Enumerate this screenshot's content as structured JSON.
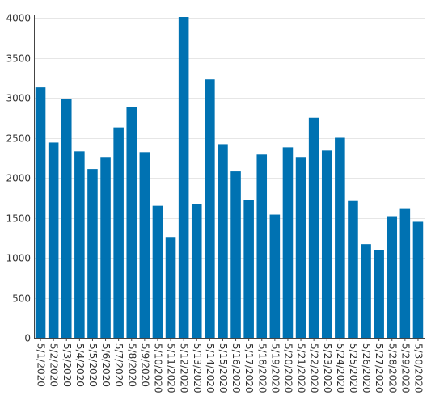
{
  "chart_data": {
    "type": "bar",
    "title": "",
    "xlabel": "",
    "ylabel": "",
    "ylim": [
      0,
      4000
    ],
    "y_ticks": [
      0,
      500,
      1000,
      1500,
      2000,
      2500,
      3000,
      3500,
      4000
    ],
    "grid": true,
    "bar_color": "#0072b2",
    "categories": [
      "5/1/2020",
      "5/2/2020",
      "5/3/2020",
      "5/4/2020",
      "5/5/2020",
      "5/6/2020",
      "5/7/2020",
      "5/8/2020",
      "5/9/2020",
      "5/10/2020",
      "5/11/2020",
      "5/12/2020",
      "5/13/2020",
      "5/14/2020",
      "5/15/2020",
      "5/16/2020",
      "5/17/2020",
      "5/18/2020",
      "5/19/2020",
      "5/20/2020",
      "5/21/2020",
      "5/22/2020",
      "5/23/2020",
      "5/24/2020",
      "5/25/2020",
      "5/26/2020",
      "5/27/2020",
      "5/28/2020",
      "5/29/2020",
      "5/30/2020"
    ],
    "values": [
      3130,
      2440,
      2990,
      2330,
      2110,
      2260,
      2630,
      2880,
      2320,
      1650,
      1260,
      4010,
      1670,
      3230,
      2420,
      2080,
      1720,
      2290,
      1540,
      2380,
      2260,
      2750,
      2340,
      2500,
      1710,
      1170,
      1100,
      1520,
      1610,
      1450
    ]
  }
}
